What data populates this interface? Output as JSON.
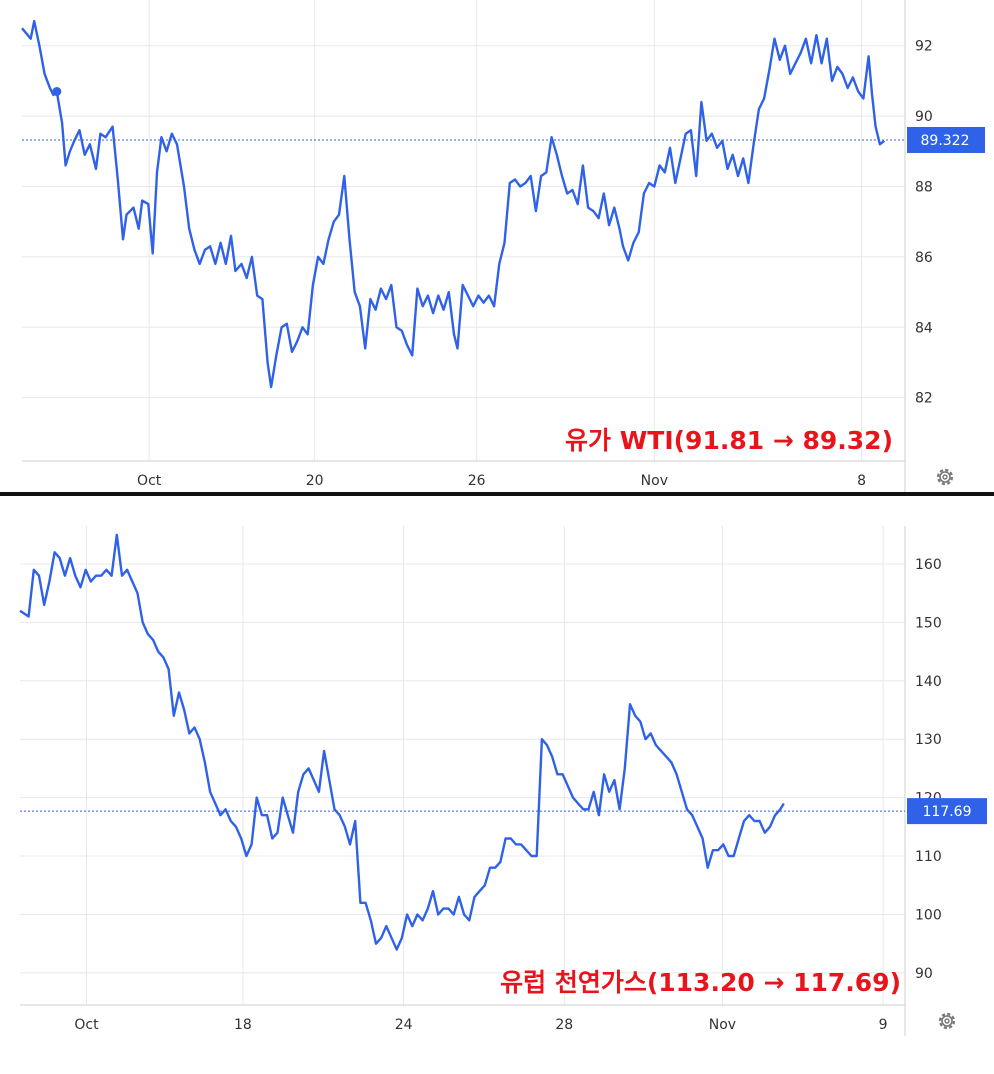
{
  "chart_data": [
    {
      "type": "line",
      "annotation": "유가 WTI(91.81 → 89.32)",
      "last_value_label": "89.322",
      "last_value": 89.322,
      "ylim": [
        80.2,
        93.3
      ],
      "y_ticks": [
        82,
        84,
        86,
        88,
        90,
        92
      ],
      "x_ticks": [
        {
          "label": "Oct",
          "x": 0.146
        },
        {
          "label": "20",
          "x": 0.336
        },
        {
          "label": "26",
          "x": 0.522
        },
        {
          "label": "Nov",
          "x": 0.726
        },
        {
          "label": "8",
          "x": 0.964
        }
      ],
      "series_color": "#2f62e8",
      "points": [
        [
          0,
          92.5
        ],
        [
          0.01,
          92.2
        ],
        [
          0.014,
          92.7
        ],
        [
          0.02,
          92.0
        ],
        [
          0.026,
          91.2
        ],
        [
          0.032,
          90.8
        ],
        [
          0.036,
          90.6
        ],
        [
          0.04,
          90.7
        ],
        [
          0.046,
          89.8
        ],
        [
          0.05,
          88.6
        ],
        [
          0.055,
          89.0
        ],
        [
          0.06,
          89.3
        ],
        [
          0.066,
          89.6
        ],
        [
          0.072,
          88.9
        ],
        [
          0.078,
          89.2
        ],
        [
          0.085,
          88.5
        ],
        [
          0.09,
          89.5
        ],
        [
          0.096,
          89.4
        ],
        [
          0.104,
          89.7
        ],
        [
          0.11,
          88.2
        ],
        [
          0.116,
          86.5
        ],
        [
          0.12,
          87.2
        ],
        [
          0.128,
          87.4
        ],
        [
          0.134,
          86.8
        ],
        [
          0.138,
          87.6
        ],
        [
          0.145,
          87.5
        ],
        [
          0.15,
          86.1
        ],
        [
          0.155,
          88.4
        ],
        [
          0.16,
          89.4
        ],
        [
          0.166,
          89.0
        ],
        [
          0.172,
          89.5
        ],
        [
          0.178,
          89.2
        ],
        [
          0.186,
          88.0
        ],
        [
          0.192,
          86.8
        ],
        [
          0.198,
          86.2
        ],
        [
          0.204,
          85.8
        ],
        [
          0.21,
          86.2
        ],
        [
          0.216,
          86.3
        ],
        [
          0.222,
          85.8
        ],
        [
          0.228,
          86.4
        ],
        [
          0.234,
          85.8
        ],
        [
          0.24,
          86.6
        ],
        [
          0.245,
          85.6
        ],
        [
          0.252,
          85.8
        ],
        [
          0.258,
          85.4
        ],
        [
          0.264,
          86.0
        ],
        [
          0.27,
          84.9
        ],
        [
          0.276,
          84.8
        ],
        [
          0.282,
          83.0
        ],
        [
          0.286,
          82.3
        ],
        [
          0.292,
          83.2
        ],
        [
          0.298,
          84.0
        ],
        [
          0.304,
          84.1
        ],
        [
          0.31,
          83.3
        ],
        [
          0.316,
          83.6
        ],
        [
          0.322,
          84.0
        ],
        [
          0.328,
          83.8
        ],
        [
          0.334,
          85.2
        ],
        [
          0.34,
          86.0
        ],
        [
          0.346,
          85.8
        ],
        [
          0.352,
          86.5
        ],
        [
          0.358,
          87.0
        ],
        [
          0.364,
          87.2
        ],
        [
          0.37,
          88.3
        ],
        [
          0.376,
          86.5
        ],
        [
          0.382,
          85.0
        ],
        [
          0.388,
          84.6
        ],
        [
          0.394,
          83.4
        ],
        [
          0.4,
          84.8
        ],
        [
          0.406,
          84.5
        ],
        [
          0.412,
          85.1
        ],
        [
          0.418,
          84.8
        ],
        [
          0.424,
          85.2
        ],
        [
          0.43,
          84.0
        ],
        [
          0.436,
          83.9
        ],
        [
          0.442,
          83.5
        ],
        [
          0.448,
          83.2
        ],
        [
          0.454,
          85.1
        ],
        [
          0.46,
          84.6
        ],
        [
          0.466,
          84.9
        ],
        [
          0.472,
          84.4
        ],
        [
          0.478,
          84.9
        ],
        [
          0.484,
          84.5
        ],
        [
          0.49,
          85.0
        ],
        [
          0.496,
          83.8
        ],
        [
          0.5,
          83.4
        ],
        [
          0.506,
          85.2
        ],
        [
          0.512,
          84.9
        ],
        [
          0.518,
          84.6
        ],
        [
          0.524,
          84.9
        ],
        [
          0.53,
          84.7
        ],
        [
          0.536,
          84.9
        ],
        [
          0.542,
          84.6
        ],
        [
          0.548,
          85.8
        ],
        [
          0.554,
          86.4
        ],
        [
          0.56,
          88.1
        ],
        [
          0.566,
          88.2
        ],
        [
          0.572,
          88.0
        ],
        [
          0.578,
          88.1
        ],
        [
          0.584,
          88.3
        ],
        [
          0.59,
          87.3
        ],
        [
          0.596,
          88.3
        ],
        [
          0.602,
          88.4
        ],
        [
          0.608,
          89.4
        ],
        [
          0.614,
          88.9
        ],
        [
          0.62,
          88.3
        ],
        [
          0.626,
          87.8
        ],
        [
          0.632,
          87.9
        ],
        [
          0.638,
          87.5
        ],
        [
          0.644,
          88.6
        ],
        [
          0.65,
          87.4
        ],
        [
          0.656,
          87.3
        ],
        [
          0.662,
          87.1
        ],
        [
          0.668,
          87.8
        ],
        [
          0.674,
          86.9
        ],
        [
          0.68,
          87.4
        ],
        [
          0.686,
          86.8
        ],
        [
          0.69,
          86.3
        ],
        [
          0.696,
          85.9
        ],
        [
          0.702,
          86.4
        ],
        [
          0.708,
          86.7
        ],
        [
          0.714,
          87.8
        ],
        [
          0.72,
          88.1
        ],
        [
          0.726,
          88.0
        ],
        [
          0.732,
          88.6
        ],
        [
          0.738,
          88.4
        ],
        [
          0.744,
          89.1
        ],
        [
          0.75,
          88.1
        ],
        [
          0.756,
          88.8
        ],
        [
          0.762,
          89.5
        ],
        [
          0.768,
          89.6
        ],
        [
          0.774,
          88.3
        ],
        [
          0.78,
          90.4
        ],
        [
          0.786,
          89.3
        ],
        [
          0.792,
          89.5
        ],
        [
          0.798,
          89.1
        ],
        [
          0.804,
          89.3
        ],
        [
          0.81,
          88.5
        ],
        [
          0.816,
          88.9
        ],
        [
          0.822,
          88.3
        ],
        [
          0.828,
          88.8
        ],
        [
          0.834,
          88.1
        ],
        [
          0.84,
          89.2
        ],
        [
          0.846,
          90.2
        ],
        [
          0.852,
          90.5
        ],
        [
          0.858,
          91.3
        ],
        [
          0.864,
          92.2
        ],
        [
          0.87,
          91.6
        ],
        [
          0.876,
          92.0
        ],
        [
          0.882,
          91.2
        ],
        [
          0.888,
          91.5
        ],
        [
          0.894,
          91.8
        ],
        [
          0.9,
          92.2
        ],
        [
          0.906,
          91.5
        ],
        [
          0.912,
          92.3
        ],
        [
          0.918,
          91.5
        ],
        [
          0.924,
          92.2
        ],
        [
          0.93,
          91.0
        ],
        [
          0.936,
          91.4
        ],
        [
          0.942,
          91.2
        ],
        [
          0.948,
          90.8
        ],
        [
          0.954,
          91.1
        ],
        [
          0.96,
          90.7
        ],
        [
          0.966,
          90.5
        ],
        [
          0.972,
          91.7
        ],
        [
          0.976,
          90.6
        ],
        [
          0.98,
          89.7
        ],
        [
          0.985,
          89.2
        ],
        [
          0.99,
          89.3
        ]
      ]
    },
    {
      "type": "line",
      "annotation": "유럽 천연가스(113.20 → 117.69)",
      "last_value_label": "117.69",
      "last_value": 117.69,
      "ylim": [
        84.5,
        166.5
      ],
      "y_ticks": [
        90,
        100,
        110,
        120,
        130,
        140,
        150,
        160
      ],
      "x_ticks": [
        {
          "label": "Oct",
          "x": 0.077
        },
        {
          "label": "18",
          "x": 0.258
        },
        {
          "label": "24",
          "x": 0.444
        },
        {
          "label": "28",
          "x": 0.63
        },
        {
          "label": "Nov",
          "x": 0.813
        },
        {
          "label": "9",
          "x": 0.999
        }
      ],
      "series_color": "#2f62e8",
      "points": [
        [
          0,
          152
        ],
        [
          0.01,
          151
        ],
        [
          0.016,
          159
        ],
        [
          0.022,
          158
        ],
        [
          0.028,
          153
        ],
        [
          0.034,
          157
        ],
        [
          0.04,
          162
        ],
        [
          0.046,
          161
        ],
        [
          0.052,
          158
        ],
        [
          0.058,
          161
        ],
        [
          0.064,
          158
        ],
        [
          0.07,
          156
        ],
        [
          0.076,
          159
        ],
        [
          0.082,
          157
        ],
        [
          0.088,
          158
        ],
        [
          0.094,
          158
        ],
        [
          0.1,
          159
        ],
        [
          0.106,
          158
        ],
        [
          0.112,
          165
        ],
        [
          0.118,
          158
        ],
        [
          0.124,
          159
        ],
        [
          0.13,
          157
        ],
        [
          0.136,
          155
        ],
        [
          0.142,
          150
        ],
        [
          0.148,
          148
        ],
        [
          0.154,
          147
        ],
        [
          0.16,
          145
        ],
        [
          0.166,
          144
        ],
        [
          0.172,
          142
        ],
        [
          0.178,
          134
        ],
        [
          0.184,
          138
        ],
        [
          0.19,
          135
        ],
        [
          0.196,
          131
        ],
        [
          0.202,
          132
        ],
        [
          0.208,
          130
        ],
        [
          0.214,
          126
        ],
        [
          0.22,
          121
        ],
        [
          0.226,
          119
        ],
        [
          0.232,
          117
        ],
        [
          0.238,
          118
        ],
        [
          0.244,
          116
        ],
        [
          0.25,
          115
        ],
        [
          0.256,
          113
        ],
        [
          0.262,
          110
        ],
        [
          0.268,
          112
        ],
        [
          0.274,
          120
        ],
        [
          0.28,
          117
        ],
        [
          0.286,
          117
        ],
        [
          0.292,
          113
        ],
        [
          0.298,
          114
        ],
        [
          0.304,
          120
        ],
        [
          0.31,
          117
        ],
        [
          0.316,
          114
        ],
        [
          0.322,
          121
        ],
        [
          0.328,
          124
        ],
        [
          0.334,
          125
        ],
        [
          0.34,
          123
        ],
        [
          0.346,
          121
        ],
        [
          0.352,
          128
        ],
        [
          0.358,
          123
        ],
        [
          0.364,
          118
        ],
        [
          0.37,
          117
        ],
        [
          0.376,
          115
        ],
        [
          0.382,
          112
        ],
        [
          0.388,
          116
        ],
        [
          0.394,
          102
        ],
        [
          0.4,
          102
        ],
        [
          0.406,
          99
        ],
        [
          0.412,
          95
        ],
        [
          0.418,
          96
        ],
        [
          0.424,
          98
        ],
        [
          0.43,
          96
        ],
        [
          0.436,
          94
        ],
        [
          0.442,
          96
        ],
        [
          0.448,
          100
        ],
        [
          0.454,
          98
        ],
        [
          0.46,
          100
        ],
        [
          0.466,
          99
        ],
        [
          0.472,
          101
        ],
        [
          0.478,
          104
        ],
        [
          0.484,
          100
        ],
        [
          0.49,
          101
        ],
        [
          0.496,
          101
        ],
        [
          0.502,
          100
        ],
        [
          0.508,
          103
        ],
        [
          0.514,
          100
        ],
        [
          0.52,
          99
        ],
        [
          0.526,
          103
        ],
        [
          0.532,
          104
        ],
        [
          0.538,
          105
        ],
        [
          0.544,
          108
        ],
        [
          0.55,
          108
        ],
        [
          0.556,
          109
        ],
        [
          0.562,
          113
        ],
        [
          0.568,
          113
        ],
        [
          0.574,
          112
        ],
        [
          0.58,
          112
        ],
        [
          0.586,
          111
        ],
        [
          0.592,
          110
        ],
        [
          0.598,
          110
        ],
        [
          0.604,
          130
        ],
        [
          0.61,
          129
        ],
        [
          0.616,
          127
        ],
        [
          0.622,
          124
        ],
        [
          0.628,
          124
        ],
        [
          0.634,
          122
        ],
        [
          0.64,
          120
        ],
        [
          0.646,
          119
        ],
        [
          0.652,
          118
        ],
        [
          0.658,
          118
        ],
        [
          0.664,
          121
        ],
        [
          0.67,
          117
        ],
        [
          0.676,
          124
        ],
        [
          0.682,
          121
        ],
        [
          0.688,
          123
        ],
        [
          0.694,
          118
        ],
        [
          0.7,
          125
        ],
        [
          0.706,
          136
        ],
        [
          0.712,
          134
        ],
        [
          0.718,
          133
        ],
        [
          0.724,
          130
        ],
        [
          0.73,
          131
        ],
        [
          0.736,
          129
        ],
        [
          0.742,
          128
        ],
        [
          0.748,
          127
        ],
        [
          0.754,
          126
        ],
        [
          0.76,
          124
        ],
        [
          0.766,
          121
        ],
        [
          0.772,
          118
        ],
        [
          0.778,
          117
        ],
        [
          0.784,
          115
        ],
        [
          0.79,
          113
        ],
        [
          0.796,
          108
        ],
        [
          0.802,
          111
        ],
        [
          0.808,
          111
        ],
        [
          0.814,
          112
        ],
        [
          0.82,
          110
        ],
        [
          0.826,
          110
        ],
        [
          0.832,
          113
        ],
        [
          0.838,
          116
        ],
        [
          0.844,
          117
        ],
        [
          0.85,
          116
        ],
        [
          0.856,
          116
        ],
        [
          0.862,
          114
        ],
        [
          0.868,
          115
        ],
        [
          0.874,
          117
        ],
        [
          0.88,
          118
        ],
        [
          0.884,
          119
        ]
      ]
    }
  ]
}
